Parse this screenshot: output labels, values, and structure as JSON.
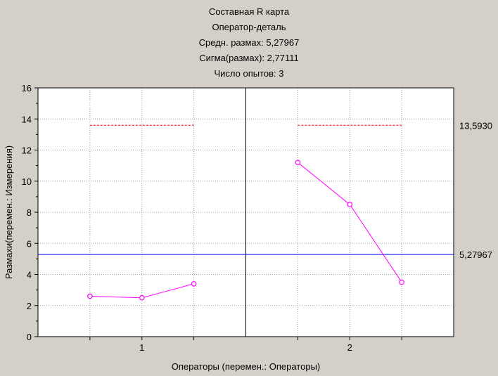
{
  "chart_data": {
    "type": "line",
    "title_lines": [
      "Составная R карта",
      "Оператор-деталь",
      "Средн. размах: 5,27967",
      "Сигма(размах): 2,77111",
      "Число опытов:  3"
    ],
    "xlabel": "Операторы (перемен.: Операторы)",
    "ylabel": "Размахи(перемен.: Измерения)",
    "ylim": [
      0,
      16
    ],
    "yticks": [
      0,
      2,
      4,
      6,
      8,
      10,
      12,
      14,
      16
    ],
    "groups": [
      {
        "label": "1",
        "values": [
          2.6,
          2.5,
          3.4
        ]
      },
      {
        "label": "2",
        "values": [
          11.2,
          8.5,
          3.5
        ]
      }
    ],
    "center_line": {
      "value": 5.27967,
      "label": "5,27967"
    },
    "upper_control_limit": {
      "value": 13.593,
      "label": "13,5930"
    },
    "colors": {
      "background": "#d4d0c8",
      "plot_background": "#ffffff",
      "series": "#ff00ff",
      "center_line": "#0000ff",
      "control_limit": "#ff0000",
      "grid": "#a0a0a0"
    },
    "grid": true
  }
}
